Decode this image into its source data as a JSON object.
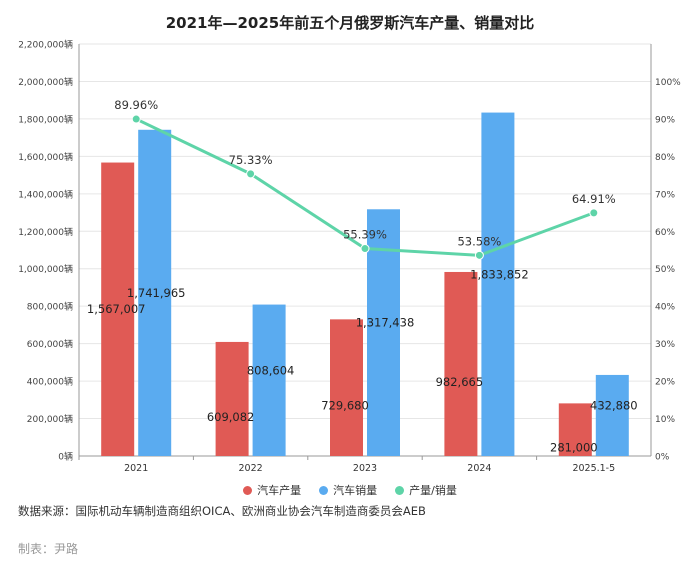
{
  "title": "2021年—2025年前五个月俄罗斯汽车产量、销量对比",
  "source": "数据来源：国际机动车辆制造商组织OICA、欧洲商业协会汽车制造商委员会AEB",
  "credit": "制表：尹路",
  "legend": [
    {
      "label": "汽车产量",
      "color": "#e05a55"
    },
    {
      "label": "汽车销量",
      "color": "#5aabf0"
    },
    {
      "label": "产量/销量",
      "color": "#5ed4a8"
    }
  ],
  "chart_data": {
    "type": "bar",
    "categories": [
      "2021",
      "2022",
      "2023",
      "2024",
      "2025.1-5"
    ],
    "series": [
      {
        "name": "汽车产量",
        "type": "bar",
        "color": "#e05a55",
        "values": [
          1567007,
          609082,
          729680,
          982665,
          281000
        ],
        "labels": [
          "1,567,007",
          "609,082",
          "729,680",
          "982,665",
          "281,000"
        ]
      },
      {
        "name": "汽车销量",
        "type": "bar",
        "color": "#5aabf0",
        "values": [
          1741965,
          808604,
          1317438,
          1833852,
          432880
        ],
        "labels": [
          "1,741,965",
          "808,604",
          "1,317,438",
          "1,833,852",
          "432,880"
        ]
      },
      {
        "name": "产量/销量",
        "type": "line",
        "axis": "right",
        "color": "#5ed4a8",
        "values": [
          89.96,
          75.33,
          55.39,
          53.58,
          64.91
        ],
        "labels": [
          "89.96%",
          "75.33%",
          "55.39%",
          "53.58%",
          "64.91%"
        ]
      }
    ],
    "ylim": [
      0,
      2200000
    ],
    "yticks": [
      "0辆",
      "200,000辆",
      "400,000辆",
      "600,000辆",
      "800,000辆",
      "1,000,000辆",
      "1,200,000辆",
      "1,400,000辆",
      "1,600,000辆",
      "1,800,000辆",
      "2,000,000辆",
      "2,200,000辆"
    ],
    "y2lim": [
      0,
      110
    ],
    "y2ticks": [
      "0%",
      "10%",
      "20%",
      "30%",
      "40%",
      "50%",
      "60%",
      "70%",
      "80%",
      "90%",
      "100%"
    ]
  }
}
